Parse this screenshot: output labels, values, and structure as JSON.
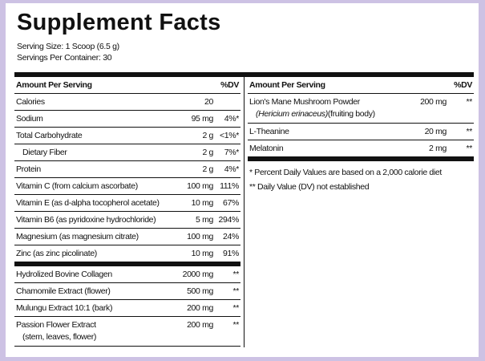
{
  "title": "Supplement Facts",
  "serving_size": "Serving Size: 1 Scoop (6.5 g)",
  "servings_per_container": "Servings Per Container: 30",
  "left": {
    "header": {
      "amount": "Amount Per Serving",
      "dv": "%DV"
    },
    "groups": [
      [
        {
          "name": "Calories",
          "amount": "20",
          "dv": ""
        },
        {
          "name": "Sodium",
          "amount": "95 mg",
          "dv": "4%*"
        },
        {
          "name": "Total Carbohydrate",
          "amount": "2 g",
          "dv": "<1%*",
          "sub": {
            "name": "Dietary Fiber",
            "amount": "2 g",
            "dv": "7%*"
          }
        },
        {
          "name": "Protein",
          "amount": "2 g",
          "dv": "4%*"
        },
        {
          "name": "Vitamin C (from calcium ascorbate)",
          "amount": "100 mg",
          "dv": "111%"
        },
        {
          "name": "Vitamin E (as d-alpha tocopherol acetate)",
          "amount": "10 mg",
          "dv": "67%"
        },
        {
          "name": "Vitamin B6 (as pyridoxine hydrochloride)",
          "amount": "5 mg",
          "dv": "294%"
        },
        {
          "name": "Magnesium (as magnesium citrate)",
          "amount": "100 mg",
          "dv": "24%"
        },
        {
          "name": "Zinc (as zinc picolinate)",
          "amount": "10 mg",
          "dv": "91%"
        }
      ],
      [
        {
          "name": "Hydrolized Bovine Collagen",
          "amount": "2000 mg",
          "dv": "**"
        },
        {
          "name": "Chamomile Extract (flower)",
          "amount": "500 mg",
          "dv": "**"
        },
        {
          "name": "Mulungu Extract 10:1 (bark)",
          "amount": "200 mg",
          "dv": "**"
        },
        {
          "name": "Passion Flower Extract",
          "detail": "(stem, leaves, flower)",
          "amount": "200 mg",
          "dv": "**"
        }
      ]
    ]
  },
  "right": {
    "header": {
      "amount": "Amount Per Serving",
      "dv": "%DV"
    },
    "groups": [
      [
        {
          "name": "Lion's Mane Mushroom Powder",
          "latin": "(Hericium erinaceus)",
          "detail": "(fruiting body)",
          "amount": "200 mg",
          "dv": "**"
        },
        {
          "name": "L-Theanine",
          "amount": "20 mg",
          "dv": "**"
        },
        {
          "name": "Melatonin",
          "amount": "2 mg",
          "dv": "**"
        }
      ]
    ],
    "footnotes": [
      "* Percent Daily Values are based on a 2,000 calorie diet",
      "** Daily Value (DV) not established"
    ]
  }
}
